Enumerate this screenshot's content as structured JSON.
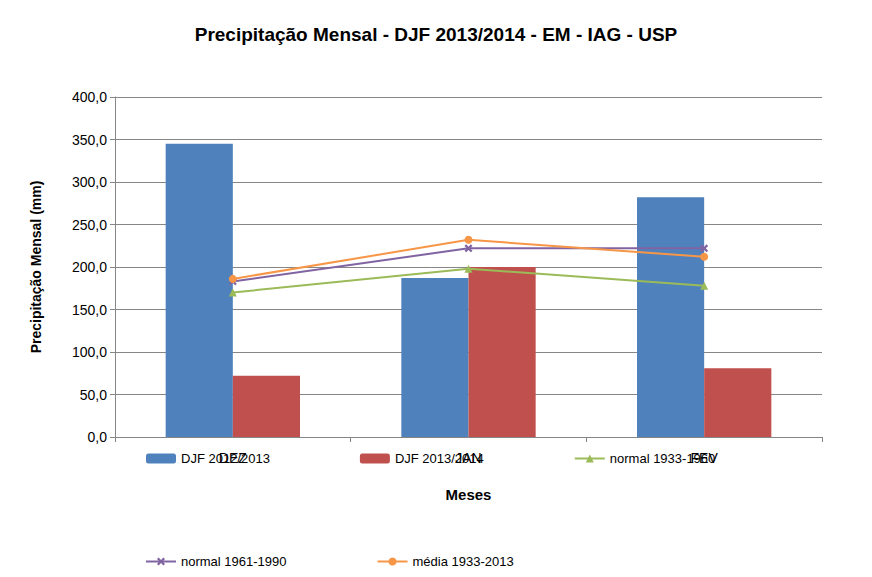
{
  "chart_data": {
    "type": "bar",
    "title": "Precipitação Mensal - DJF 2013/2014 - EM - IAG - USP",
    "x_label": "Meses",
    "y_label": "Precipitação Mensal (mm)",
    "categories": [
      "DEZ",
      "JAN",
      "FEV"
    ],
    "series": [
      {
        "name": "DJF 2012/2013",
        "type": "bar",
        "color": "#4f81bd",
        "values": [
          345,
          187,
          282
        ]
      },
      {
        "name": "DJF 2013/2014",
        "type": "bar",
        "color": "#c0504d",
        "values": [
          72,
          200,
          81
        ]
      },
      {
        "name": "normal 1933-1960",
        "type": "line",
        "color": "#9bbb59",
        "marker": "triangle",
        "values": [
          170,
          198,
          178
        ]
      },
      {
        "name": "normal 1961-1990",
        "type": "line",
        "color": "#8064a2",
        "marker": "x",
        "values": [
          183,
          222,
          222
        ]
      },
      {
        "name": "média 1933-2013",
        "type": "line",
        "color": "#f79646",
        "marker": "circle",
        "values": [
          186,
          232,
          212
        ]
      }
    ],
    "ylim": [
      0,
      400
    ],
    "yticks": [
      {
        "value": 0,
        "label": "0,0"
      },
      {
        "value": 50,
        "label": "50,0"
      },
      {
        "value": 100,
        "label": "100,0"
      },
      {
        "value": 150,
        "label": "150,0"
      },
      {
        "value": 200,
        "label": "200,0"
      },
      {
        "value": 250,
        "label": "250,0"
      },
      {
        "value": 300,
        "label": "300,0"
      },
      {
        "value": 350,
        "label": "350,0"
      },
      {
        "value": 400,
        "label": "400,0"
      }
    ],
    "grid": true,
    "legend": "bottom"
  }
}
